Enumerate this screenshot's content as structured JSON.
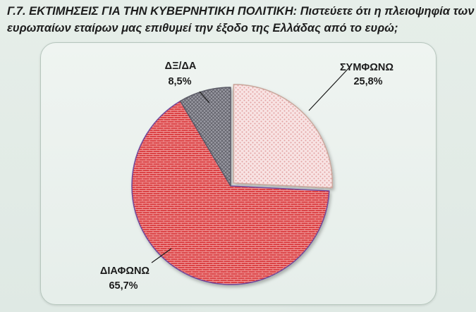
{
  "title": {
    "line1": "Γ.7. ΕΚΤΙΜΗΣΕΙΣ ΓΙΑ ΤΗΝ ΚΥΒΕΡΝΗΤΙΚΗ ΠΟΛΙΤΙΚΗ: Πιστεύετε ότι η πλειοψηφία των",
    "line2": "ευρωπαίων εταίρων μας επιθυμεί την έξοδο της Ελλάδας από το ευρώ;"
  },
  "chart_data": {
    "type": "pie",
    "title": "Γ.7. ΕΚΤΙΜΗΣΕΙΣ ΓΙΑ ΤΗΝ ΚΥΒΕΡΝΗΤΙΚΗ ΠΟΛΙΤΙΚΗ: Πιστεύετε ότι η πλειοψηφία των ευρωπαίων εταίρων μας επιθυμεί την έξοδο της Ελλάδας από το ευρώ;",
    "unit": "%",
    "grid": false,
    "legend": "none",
    "slices": [
      {
        "label": "ΣΥΜΦΩΝΩ",
        "value": 25.8,
        "value_label": "25,8%",
        "color": "#f6dcdc",
        "pattern": "dots"
      },
      {
        "label": "ΔΙΑΦΩΝΩ",
        "value": 65.7,
        "value_label": "65,7%",
        "color": "#d6393c",
        "pattern": "brick"
      },
      {
        "label": "ΔΞ/ΔΑ",
        "value": 8.5,
        "value_label": "8,5%",
        "color": "#8c8c96",
        "pattern": "crosshatch"
      }
    ]
  }
}
